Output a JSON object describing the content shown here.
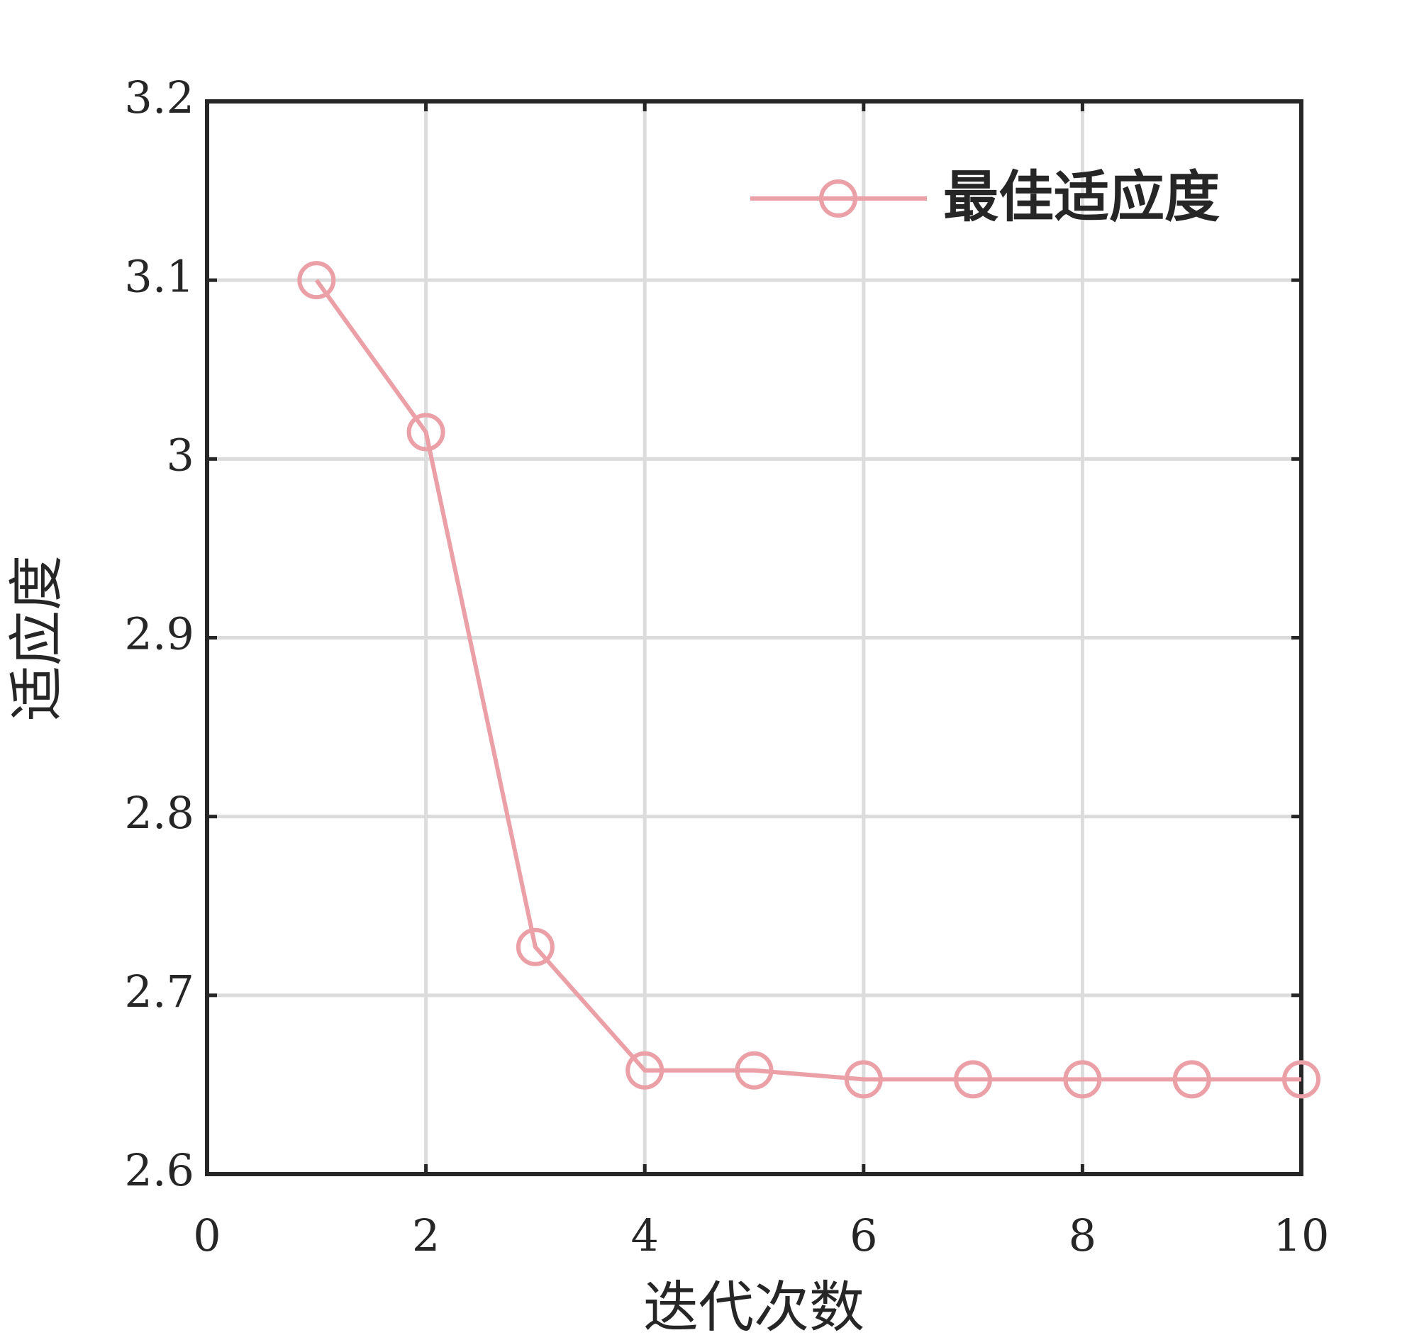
{
  "chart_data": {
    "type": "line",
    "x_label": "迭代次数",
    "y_label": "适应度",
    "x": [
      1,
      2,
      3,
      4,
      5,
      6,
      7,
      8,
      9,
      10
    ],
    "series": [
      {
        "name": "最佳适应度",
        "color": "#eba0a8",
        "values": [
          3.1,
          3.015,
          2.727,
          2.658,
          2.658,
          2.653,
          2.653,
          2.653,
          2.653,
          2.653
        ]
      }
    ],
    "xlim": [
      0,
      10
    ],
    "xticks": [
      0,
      2,
      4,
      6,
      8,
      10
    ],
    "ylim": [
      2.6,
      3.2
    ],
    "yticks": [
      2.6,
      2.7,
      2.8,
      2.9,
      3,
      3.1,
      3.2
    ],
    "grid": true,
    "legend": "top-right"
  }
}
